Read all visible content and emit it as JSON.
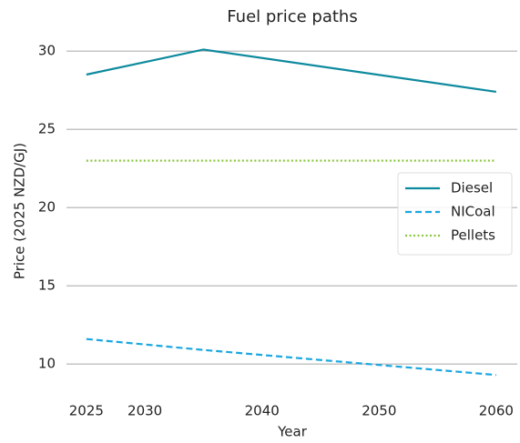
{
  "chart_data": {
    "type": "line",
    "title": "Fuel price paths",
    "x_label": "Year",
    "y_label": "Price (2025 NZD/GJ)",
    "x": [
      2025,
      2035,
      2060
    ],
    "series": [
      {
        "name": "Diesel",
        "color": "#0e8a9e",
        "linestyle": "solid",
        "values": [
          28.5,
          30.1,
          27.4
        ]
      },
      {
        "name": "NICoal",
        "color": "#1aa7e0",
        "linestyle": "dashed",
        "values": [
          11.6,
          10.9,
          9.3
        ]
      },
      {
        "name": "Pellets",
        "color": "#8cc63f",
        "linestyle": "dotted",
        "values": [
          23,
          23,
          23
        ]
      }
    ],
    "xlim": [
      2023.3,
      2061.8
    ],
    "xticks": [
      2025,
      2030,
      2040,
      2050,
      2060
    ],
    "ylim": [
      8.5,
      31
    ],
    "yticks": [
      10,
      15,
      20,
      25,
      30
    ],
    "grid": true,
    "legend": "right"
  }
}
